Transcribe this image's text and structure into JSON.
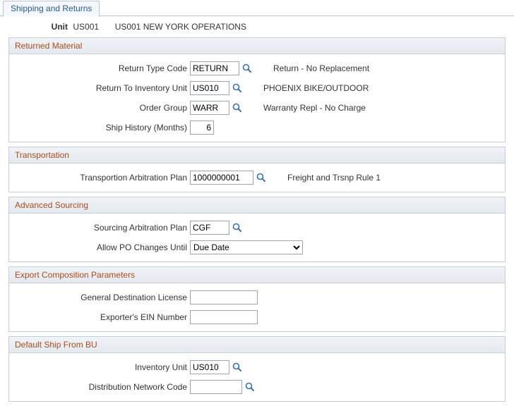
{
  "tab": {
    "label": "Shipping and Returns"
  },
  "header": {
    "label": "Unit",
    "unit_code": "US001",
    "unit_name": "US001 NEW YORK OPERATIONS"
  },
  "returned_material": {
    "title": "Returned Material",
    "return_type_code": {
      "label": "Return Type Code",
      "value": "RETURN",
      "desc": "Return - No Replacement"
    },
    "return_to_inventory_unit": {
      "label": "Return To Inventory Unit",
      "value": "US010",
      "desc": "PHOENIX BIKE/OUTDOOR"
    },
    "order_group": {
      "label": "Order Group",
      "value": "WARR",
      "desc": "Warranty Repl - No Charge"
    },
    "ship_history_months": {
      "label": "Ship History (Months)",
      "value": "6"
    }
  },
  "transportation": {
    "title": "Transportation",
    "arbitration_plan": {
      "label": "Transportion Arbitration Plan",
      "value": "1000000001",
      "desc": "Freight and Trsnp Rule 1"
    }
  },
  "advanced_sourcing": {
    "title": "Advanced Sourcing",
    "sourcing_arbitration_plan": {
      "label": "Sourcing Arbitration Plan",
      "value": "CGF"
    },
    "allow_po_changes_until": {
      "label": "Allow PO Changes Until",
      "value": "Due Date"
    }
  },
  "export_composition": {
    "title": "Export Composition Parameters",
    "general_destination_license": {
      "label": "General Destination License",
      "value": ""
    },
    "exporters_ein_number": {
      "label": "Exporter's EIN Number",
      "value": ""
    }
  },
  "default_ship_from_bu": {
    "title": "Default Ship From BU",
    "inventory_unit": {
      "label": "Inventory Unit",
      "value": "US010"
    },
    "distribution_network_code": {
      "label": "Distribution Network Code",
      "value": ""
    }
  },
  "icons": {
    "lookup_color": "#3a6fb0"
  }
}
